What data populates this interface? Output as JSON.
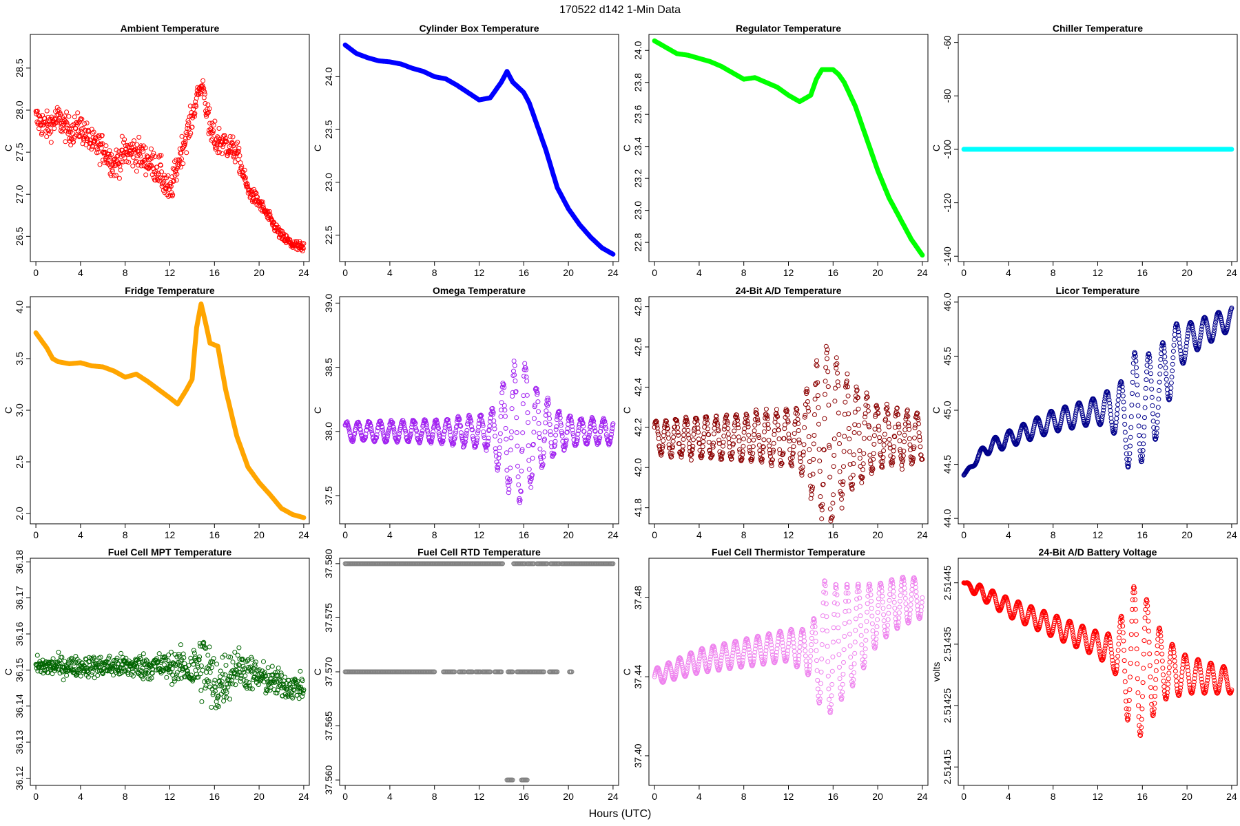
{
  "figure": {
    "title": "170522   d142   1-Min Data",
    "xlabel": "Hours (UTC)",
    "x_ticks": [
      0,
      4,
      8,
      12,
      16,
      20,
      24
    ],
    "xlim": [
      -0.5,
      24.5
    ]
  },
  "chart_data": [
    {
      "id": "ambient",
      "type": "scatter",
      "title": "Ambient Temperature",
      "ylabel": "C",
      "color": "#ff0000",
      "ylim": [
        26.2,
        28.9
      ],
      "y_ticks": [
        26.5,
        27.0,
        27.5,
        28.0,
        28.5
      ],
      "tick_labels": [
        "26.5",
        "27.0",
        "27.5",
        "28.0",
        "28.5"
      ],
      "pattern": "noisy",
      "x": [
        0,
        1,
        2,
        3,
        4,
        5,
        6,
        7,
        8,
        9,
        10,
        11,
        12,
        13,
        14,
        14.5,
        15,
        15.5,
        16,
        17,
        18,
        19,
        20,
        21,
        22,
        23,
        24
      ],
      "y": [
        27.9,
        27.8,
        27.9,
        27.75,
        27.8,
        27.6,
        27.55,
        27.35,
        27.5,
        27.5,
        27.4,
        27.3,
        27.0,
        27.5,
        27.9,
        28.2,
        28.3,
        27.8,
        27.65,
        27.6,
        27.5,
        27.05,
        26.9,
        26.7,
        26.5,
        26.4,
        26.35
      ],
      "spread": [
        0.3,
        0.3,
        0.3,
        0.3,
        0.3,
        0.3,
        0.3,
        0.3,
        0.35,
        0.35,
        0.3,
        0.35,
        0.3,
        0.3,
        0.3,
        0.15,
        0.15,
        0.4,
        0.35,
        0.3,
        0.25,
        0.15,
        0.15,
        0.12,
        0.12,
        0.12,
        0.15
      ]
    },
    {
      "id": "cylinder",
      "type": "line",
      "title": "Cylinder Box Temperature",
      "ylabel": "C",
      "color": "#0000ff",
      "ylim": [
        22.25,
        24.4
      ],
      "y_ticks": [
        22.5,
        23.0,
        23.5,
        24.0
      ],
      "tick_labels": [
        "22.5",
        "23.0",
        "23.5",
        "24.0"
      ],
      "x": [
        0,
        1,
        2,
        3,
        4,
        5,
        6,
        7,
        8,
        9,
        10,
        11,
        12,
        13,
        14,
        14.5,
        15,
        16,
        16.5,
        17,
        18,
        19,
        20,
        21,
        22,
        23,
        24
      ],
      "y": [
        24.3,
        24.22,
        24.18,
        24.15,
        24.14,
        24.12,
        24.08,
        24.05,
        24.0,
        23.98,
        23.92,
        23.85,
        23.78,
        23.8,
        23.95,
        24.05,
        23.95,
        23.85,
        23.75,
        23.6,
        23.3,
        22.95,
        22.75,
        22.6,
        22.48,
        22.38,
        22.32
      ]
    },
    {
      "id": "regulator",
      "type": "line",
      "title": "Regulator Temperature",
      "ylabel": "C",
      "color": "#00ff00",
      "ylim": [
        22.68,
        24.1
      ],
      "y_ticks": [
        22.8,
        23.0,
        23.2,
        23.4,
        23.6,
        23.8,
        24.0
      ],
      "tick_labels": [
        "22.8",
        "23.0",
        "23.2",
        "23.4",
        "23.6",
        "23.8",
        "24.0"
      ],
      "x": [
        0,
        1,
        2,
        3,
        4,
        5,
        6,
        7,
        8,
        9,
        10,
        11,
        12,
        13,
        14,
        14.5,
        15,
        16,
        16.5,
        17,
        18,
        19,
        20,
        21,
        22,
        23,
        24
      ],
      "y": [
        24.06,
        24.02,
        23.98,
        23.97,
        23.95,
        23.93,
        23.9,
        23.86,
        23.82,
        23.83,
        23.8,
        23.77,
        23.72,
        23.68,
        23.72,
        23.82,
        23.88,
        23.88,
        23.85,
        23.8,
        23.65,
        23.45,
        23.25,
        23.08,
        22.95,
        22.82,
        22.72
      ]
    },
    {
      "id": "chiller",
      "type": "line",
      "title": "Chiller Temperature",
      "ylabel": "C",
      "color": "#00ffff",
      "ylim": [
        -142,
        -57
      ],
      "y_ticks": [
        -140,
        -120,
        -100,
        -80,
        -60
      ],
      "tick_labels": [
        "-140",
        "-120",
        "-100",
        "-80",
        "-60"
      ],
      "x": [
        0,
        24
      ],
      "y": [
        -100,
        -100
      ]
    },
    {
      "id": "fridge",
      "type": "line",
      "title": "Fridge Temperature",
      "ylabel": "C",
      "color": "#ffa500",
      "ylim": [
        1.9,
        4.1
      ],
      "y_ticks": [
        2.0,
        2.5,
        3.0,
        3.5,
        4.0
      ],
      "tick_labels": [
        "2.0",
        "2.5",
        "3.0",
        "3.5",
        "4.0"
      ],
      "x": [
        0,
        1,
        1.5,
        2,
        3,
        4,
        5,
        6,
        7,
        8,
        9,
        10,
        11,
        12,
        12.7,
        13.5,
        14,
        14.4,
        14.8,
        15.2,
        15.6,
        16.3,
        17,
        18,
        19,
        20,
        21,
        22,
        23,
        24
      ],
      "y": [
        3.75,
        3.6,
        3.5,
        3.47,
        3.45,
        3.46,
        3.43,
        3.42,
        3.38,
        3.32,
        3.35,
        3.28,
        3.2,
        3.12,
        3.06,
        3.2,
        3.3,
        3.8,
        4.03,
        3.85,
        3.65,
        3.62,
        3.2,
        2.75,
        2.45,
        2.3,
        2.18,
        2.05,
        1.99,
        1.96
      ]
    },
    {
      "id": "omega",
      "type": "scatter",
      "title": "Omega Temperature",
      "ylabel": "C",
      "color": "#a020f0",
      "ylim": [
        37.28,
        39.05
      ],
      "y_ticks": [
        37.5,
        38.0,
        38.5,
        39.0
      ],
      "tick_labels": [
        "37.5",
        "38.0",
        "38.5",
        "39.0"
      ],
      "pattern": "oscillation",
      "center": 38.0,
      "amp_x": [
        0,
        9,
        13,
        14,
        15.8,
        17,
        19,
        21,
        24
      ],
      "amp": [
        0.07,
        0.09,
        0.14,
        0.35,
        0.6,
        0.35,
        0.15,
        0.1,
        0.1
      ],
      "period": 1.0
    },
    {
      "id": "ad24temp",
      "type": "scatter",
      "title": "24-Bit A/D Temperature",
      "ylabel": "C",
      "color": "#8b0000",
      "ylim": [
        41.72,
        42.85
      ],
      "y_ticks": [
        41.8,
        42.0,
        42.2,
        42.4,
        42.6,
        42.8
      ],
      "tick_labels": [
        "41.8",
        "42.0",
        "42.2",
        "42.4",
        "42.6",
        "42.8"
      ],
      "pattern": "oscillation",
      "center": 42.15,
      "amp_x": [
        0,
        9,
        13,
        14,
        15.8,
        17,
        20,
        24
      ],
      "amp": [
        0.08,
        0.12,
        0.14,
        0.3,
        0.45,
        0.3,
        0.15,
        0.12
      ],
      "period": 0.9
    },
    {
      "id": "licor",
      "type": "scatter",
      "title": "Licor Temperature",
      "ylabel": "C",
      "color": "#00008b",
      "ylim": [
        43.95,
        46.05
      ],
      "y_ticks": [
        44.0,
        44.5,
        45.0,
        45.5,
        46.0
      ],
      "tick_labels": [
        "44.0",
        "44.5",
        "45.0",
        "45.5",
        "46.0"
      ],
      "pattern": "trend_oscillation",
      "trend_x": [
        0,
        2,
        8,
        12,
        14,
        15,
        16,
        17,
        18,
        19,
        20,
        22,
        24
      ],
      "trend_y": [
        44.4,
        44.65,
        44.9,
        45.0,
        45.0,
        44.9,
        45.05,
        45.1,
        45.3,
        45.55,
        45.65,
        45.75,
        45.85
      ],
      "amp_x": [
        0,
        2,
        8,
        12,
        14,
        15.2,
        16.5,
        18,
        20,
        24
      ],
      "amp": [
        0.0,
        0.06,
        0.1,
        0.12,
        0.25,
        0.6,
        0.45,
        0.35,
        0.15,
        0.1
      ],
      "period": 1.25
    },
    {
      "id": "fcmpt",
      "type": "scatter",
      "title": "Fuel Cell MPT Temperature",
      "ylabel": "C",
      "color": "#006400",
      "ylim": [
        36.118,
        36.181
      ],
      "y_ticks": [
        36.12,
        36.13,
        36.14,
        36.15,
        36.16,
        36.17,
        36.18
      ],
      "tick_labels": [
        "36.12",
        "36.13",
        "36.14",
        "36.15",
        "36.16",
        "36.17",
        "36.18"
      ],
      "pattern": "noisy",
      "x": [
        0,
        4,
        8,
        12,
        13,
        14,
        15,
        16,
        17,
        18,
        20,
        22,
        24
      ],
      "y": [
        36.151,
        36.151,
        36.151,
        36.151,
        36.151,
        36.15,
        36.152,
        36.145,
        36.148,
        36.151,
        36.148,
        36.146,
        36.145
      ],
      "spread": [
        0.005,
        0.005,
        0.006,
        0.007,
        0.008,
        0.011,
        0.019,
        0.017,
        0.013,
        0.01,
        0.008,
        0.007,
        0.006
      ]
    },
    {
      "id": "fcrtd",
      "type": "scatter",
      "title": "Fuel Cell RTD Temperature",
      "ylabel": "C",
      "color": "#808080",
      "ylim": [
        37.5595,
        37.5805
      ],
      "y_ticks": [
        37.56,
        37.565,
        37.57,
        37.575,
        37.58
      ],
      "tick_labels": [
        "37.560",
        "37.565",
        "37.570",
        "37.575",
        "37.580"
      ],
      "pattern": "levels",
      "levels": [
        {
          "y": 37.58,
          "ranges": [
            [
              0,
              14.1
            ],
            [
              15.1,
              16.1
            ],
            [
              16.3,
              16.9
            ],
            [
              17.2,
              18.1
            ],
            [
              18.4,
              19.2
            ],
            [
              19.4,
              24
            ]
          ]
        },
        {
          "y": 37.57,
          "ranges": [
            [
              0,
              8
            ],
            [
              8.8,
              9.8
            ],
            [
              10.2,
              10.7
            ],
            [
              11.0,
              11.4
            ],
            [
              11.7,
              12.1
            ],
            [
              12.3,
              13.0
            ],
            [
              13.4,
              14.0
            ],
            [
              14.6,
              15.0
            ],
            [
              15.4,
              15.8
            ],
            [
              15.9,
              16.4
            ],
            [
              16.5,
              17.8
            ],
            [
              18.3,
              19.0
            ],
            [
              20.1,
              20.3
            ]
          ]
        },
        {
          "y": 37.56,
          "ranges": [
            [
              14.5,
              15.0
            ],
            [
              15.8,
              16.3
            ]
          ]
        }
      ]
    },
    {
      "id": "fcthermistor",
      "type": "scatter",
      "title": "Fuel Cell Thermistor Temperature",
      "ylabel": "C",
      "color": "#ee82ee",
      "ylim": [
        37.385,
        37.5
      ],
      "y_ticks": [
        37.4,
        37.44,
        37.48
      ],
      "tick_labels": [
        "37.40",
        "37.44",
        "37.48"
      ],
      "pattern": "trend_oscillation",
      "trend_x": [
        0,
        4,
        8,
        12,
        14,
        16,
        18,
        20,
        22,
        24
      ],
      "trend_y": [
        37.44,
        37.448,
        37.452,
        37.456,
        37.452,
        37.455,
        37.462,
        37.472,
        37.478,
        37.48
      ],
      "amp_x": [
        0,
        4,
        8,
        12,
        14,
        15.2,
        16.5,
        18,
        20,
        24
      ],
      "amp": [
        0.004,
        0.006,
        0.007,
        0.008,
        0.012,
        0.035,
        0.03,
        0.025,
        0.015,
        0.01
      ],
      "period": 1.0
    },
    {
      "id": "ad24batt",
      "type": "scatter",
      "title": "24-Bit A/D Battery Voltage",
      "ylabel": "volts",
      "color": "#ff0000",
      "ylim": [
        2.51412,
        2.51449
      ],
      "y_ticks": [
        2.51415,
        2.51425,
        2.51435,
        2.51445
      ],
      "tick_labels": [
        "2.51415",
        "2.51425",
        "2.51435",
        "2.51445"
      ],
      "pattern": "trend_oscillation",
      "trend_x": [
        0,
        4,
        8,
        12,
        14,
        16,
        18,
        20,
        24
      ],
      "trend_y": [
        2.51445,
        2.51441,
        2.51438,
        2.51435,
        2.51433,
        2.51432,
        2.51431,
        2.5143,
        2.51429
      ],
      "amp_x": [
        0,
        1,
        4,
        8,
        12,
        13.5,
        15,
        16,
        17,
        18,
        20,
        24
      ],
      "amp": [
        0.0,
        1e-05,
        1.5e-05,
        1.8e-05,
        2e-05,
        3e-05,
        0.00012,
        0.00012,
        8e-05,
        5e-05,
        3e-05,
        2e-05
      ],
      "period": 1.15
    }
  ]
}
